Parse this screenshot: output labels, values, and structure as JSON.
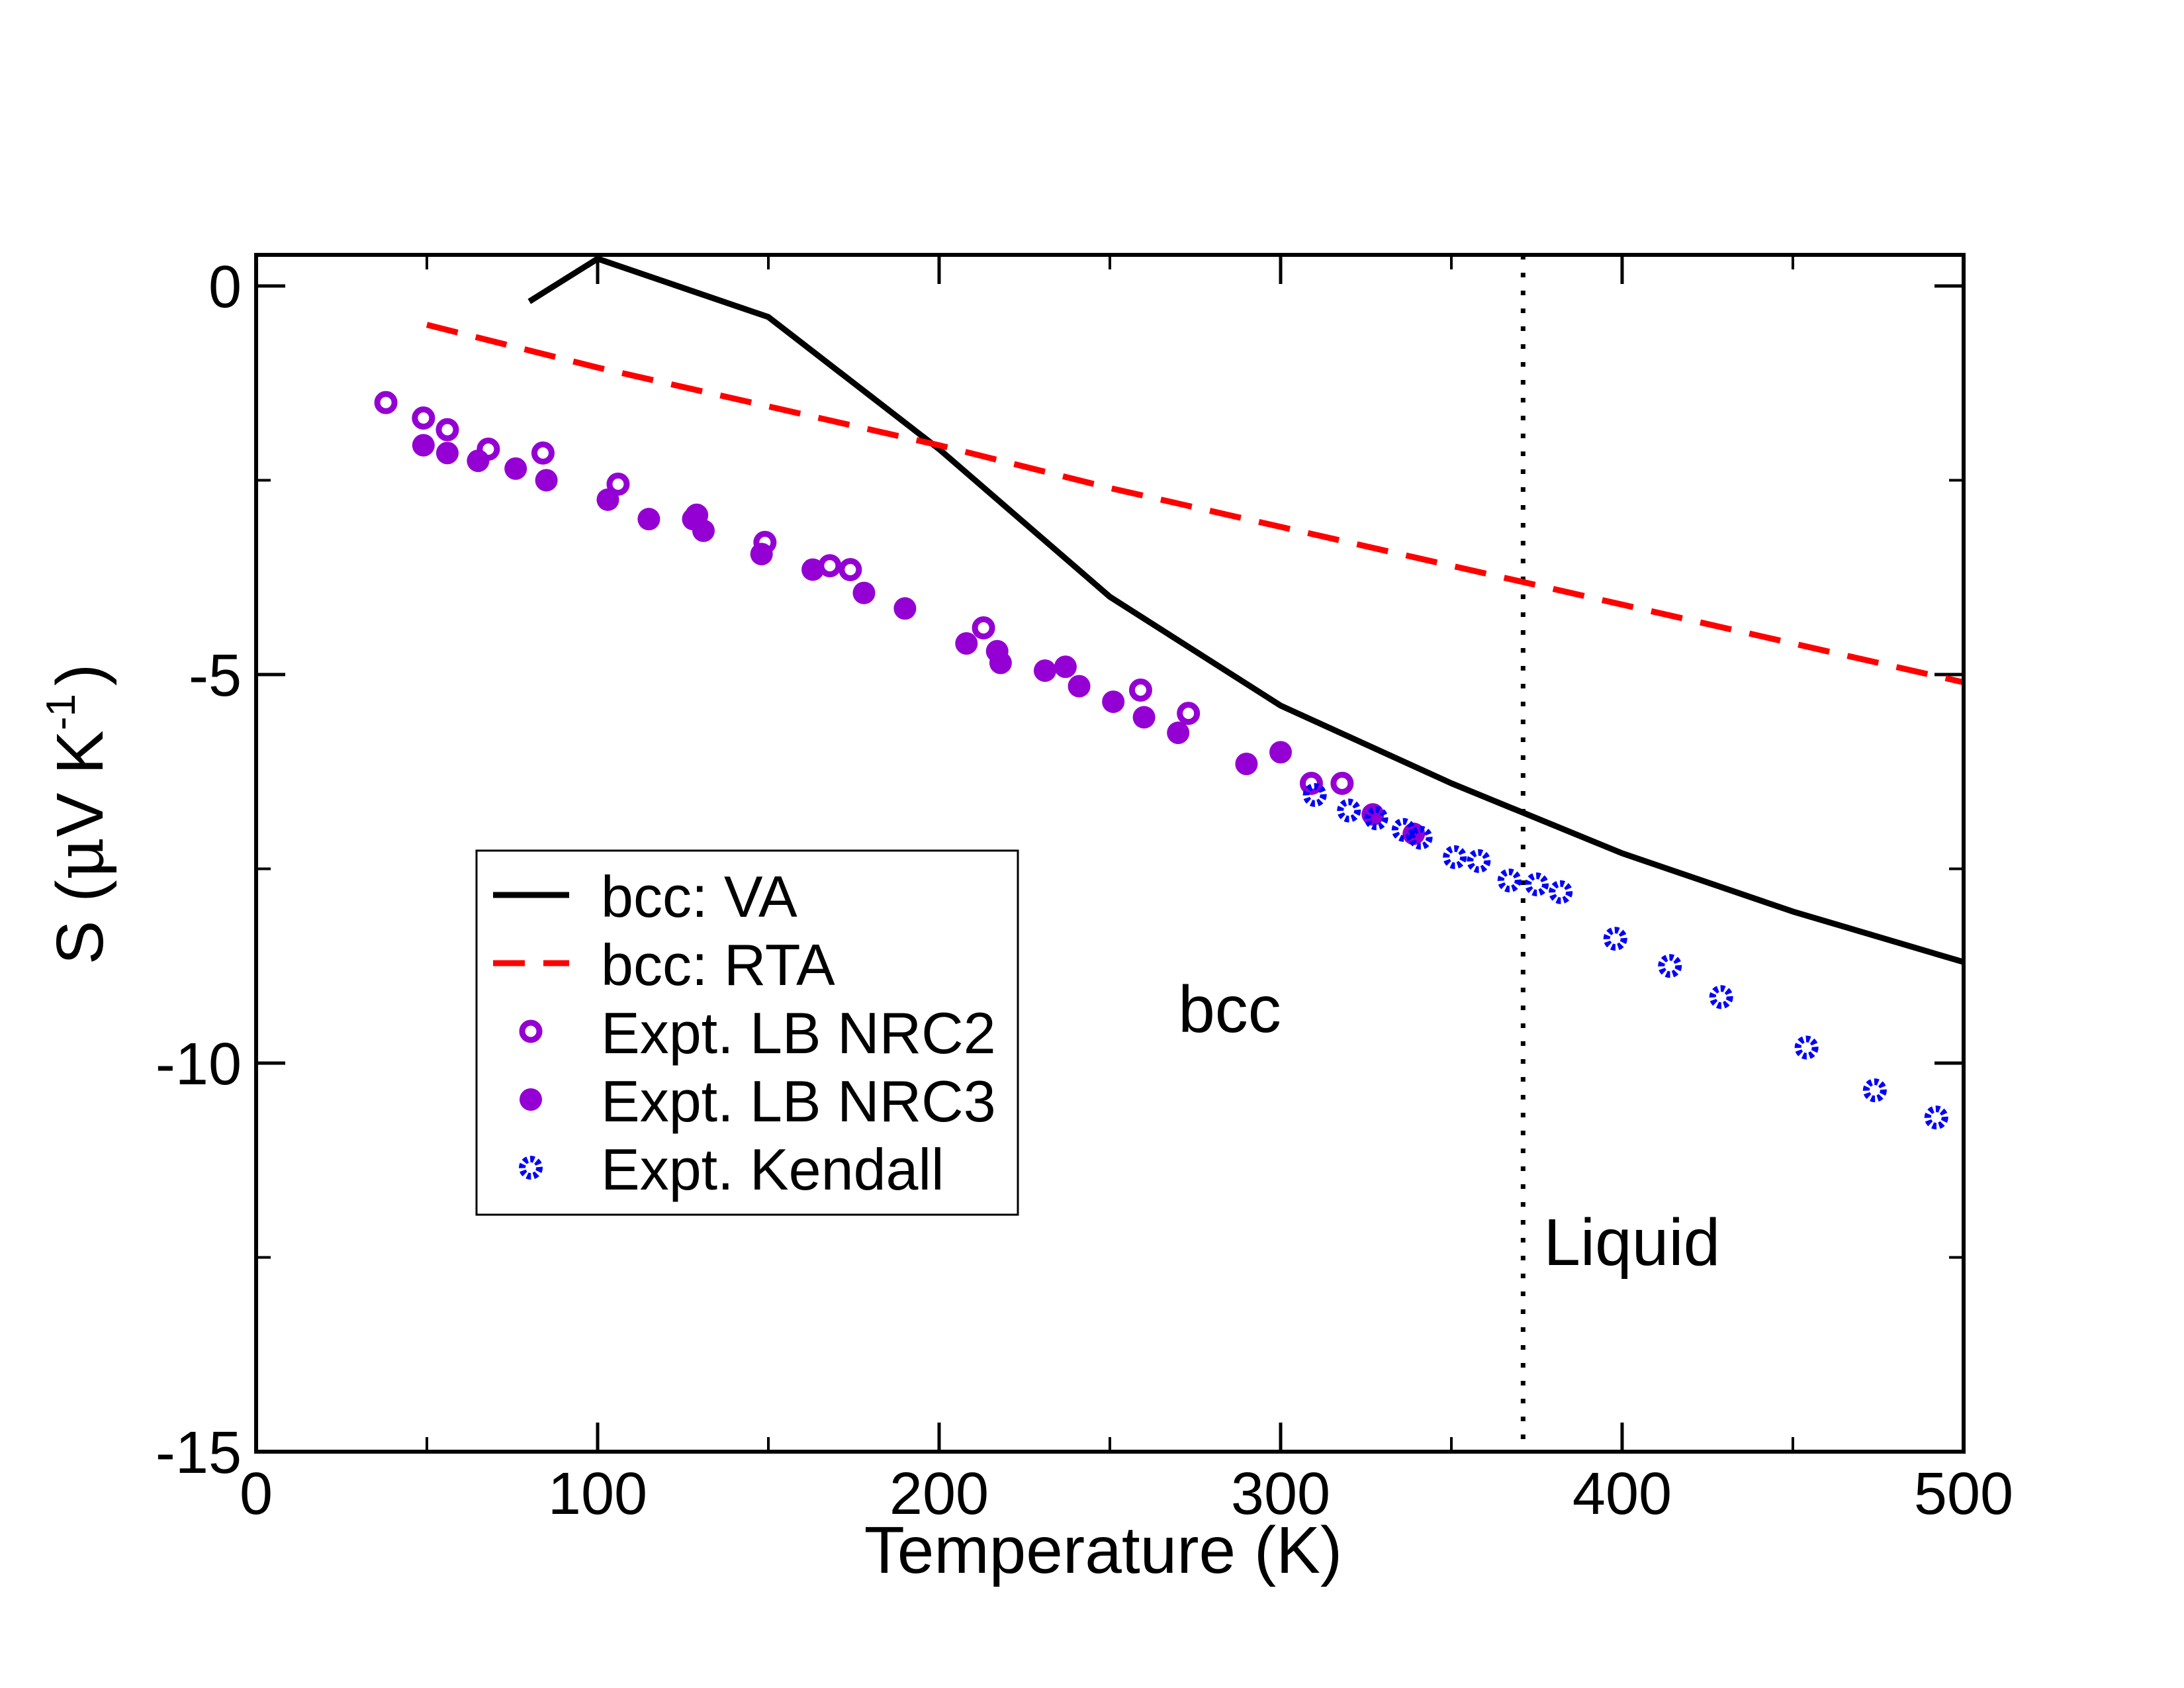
{
  "chart_data": {
    "type": "line",
    "xlabel": "Temperature (K)",
    "ylabel": {
      "prefix": "S (",
      "mu": "μ",
      "unit": "V K",
      "exponent": "-1",
      "suffix": ")"
    },
    "xlim": [
      0,
      500
    ],
    "ylim": [
      -15,
      0.4
    ],
    "x_ticks": [
      0,
      100,
      200,
      300,
      400,
      500
    ],
    "x_tick_labels": [
      "0",
      "100",
      "200",
      "300",
      "400",
      "500"
    ],
    "y_ticks": [
      0,
      -5,
      -10,
      -15
    ],
    "y_tick_labels": [
      "0",
      "-5",
      "-10",
      "-15"
    ],
    "x_minor_ticks": [
      50,
      150,
      250,
      350,
      450
    ],
    "y_minor_ticks": [
      -2.5,
      -7.5,
      -12.5
    ],
    "grid": false,
    "legend_position": "lower-left",
    "annotations": [
      {
        "text": "bcc",
        "x": 270,
        "y": -9.6
      },
      {
        "text": "Liquid",
        "x": 377,
        "y": -12.6
      }
    ],
    "vertical_line": {
      "x": 371,
      "style": "dotted",
      "color": "#000000"
    },
    "series": [
      {
        "name": "bcc: VA",
        "kind": "line",
        "style": "solid",
        "color": "#000000",
        "x": [
          80,
          100,
          150,
          200,
          250,
          300,
          350,
          400,
          450,
          500
        ],
        "y": [
          -0.2,
          0.35,
          -0.4,
          -2.1,
          -4.0,
          -5.4,
          -6.4,
          -7.3,
          -8.05,
          -8.7
        ]
      },
      {
        "name": "bcc: RTA",
        "kind": "line",
        "style": "dashed",
        "color": "#ff0000",
        "x": [
          50,
          100,
          150,
          200,
          250,
          300,
          350,
          400,
          450,
          500
        ],
        "y": [
          -0.5,
          -1.05,
          -1.55,
          -2.05,
          -2.6,
          -3.1,
          -3.6,
          -4.1,
          -4.6,
          -5.1
        ]
      },
      {
        "name": "Expt. LB NRC2",
        "kind": "scatter",
        "marker": "open-circle",
        "color": "#9400d3",
        "x": [
          38,
          49,
          56,
          68,
          84,
          106,
          129,
          149,
          168,
          174,
          213,
          259,
          273,
          309,
          318
        ],
        "y": [
          -1.5,
          -1.7,
          -1.85,
          -2.1,
          -2.15,
          -2.55,
          -2.95,
          -3.3,
          -3.6,
          -3.65,
          -4.4,
          -5.2,
          -5.5,
          -6.4,
          -6.4
        ]
      },
      {
        "name": "Expt. LB NRC3",
        "kind": "scatter",
        "marker": "filled-circle",
        "color": "#9400d3",
        "x": [
          49,
          56,
          65,
          76,
          85,
          103,
          115,
          128,
          131,
          148,
          163,
          178,
          190,
          208,
          217,
          218,
          231,
          237,
          241,
          251,
          260,
          270,
          290,
          300,
          327,
          339
        ],
        "y": [
          -2.05,
          -2.15,
          -2.25,
          -2.35,
          -2.5,
          -2.75,
          -3.0,
          -3.0,
          -3.15,
          -3.45,
          -3.65,
          -3.95,
          -4.15,
          -4.6,
          -4.7,
          -4.85,
          -4.95,
          -4.9,
          -5.15,
          -5.35,
          -5.55,
          -5.75,
          -6.15,
          -6.0,
          -6.8,
          -7.05
        ],
        "unlabeled": true
      },
      {
        "name": "Expt. Kendall",
        "kind": "scatter",
        "marker": "blue-diamond",
        "color": "#0000ff",
        "x": [
          310,
          320,
          328,
          336,
          341,
          351,
          358,
          367,
          375,
          382,
          398,
          414,
          429,
          454,
          474,
          492
        ],
        "y": [
          -6.55,
          -6.75,
          -6.85,
          -7.0,
          -7.1,
          -7.35,
          -7.4,
          -7.65,
          -7.7,
          -7.8,
          -8.4,
          -8.75,
          -9.15,
          -9.8,
          -10.35,
          -10.7
        ]
      }
    ]
  }
}
